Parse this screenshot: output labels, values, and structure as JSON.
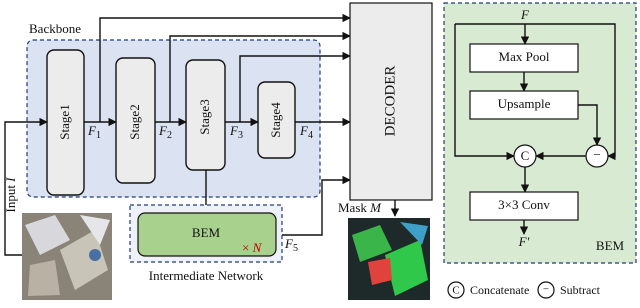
{
  "backbone": {
    "title": "Backbone",
    "stages": [
      "Stage1",
      "Stage2",
      "Stage3",
      "Stage4"
    ],
    "features": [
      {
        "base": "F",
        "sub": "1"
      },
      {
        "base": "F",
        "sub": "2"
      },
      {
        "base": "F",
        "sub": "3"
      },
      {
        "base": "F",
        "sub": "4"
      }
    ]
  },
  "input": {
    "text": "Input",
    "var": "I"
  },
  "intermediate": {
    "block": "BEM",
    "times": "×",
    "var": "N",
    "title": "Intermediate Network",
    "feature": {
      "base": "F",
      "sub": "5"
    }
  },
  "decoder": "DECODER",
  "mask": {
    "text": "Mask",
    "var": "M"
  },
  "bem_panel": {
    "input": "F",
    "max_pool": "Max Pool",
    "upsample": "Upsample",
    "concat": "C",
    "subtract": "−",
    "conv": "3×3 Conv",
    "output": "F′",
    "title": "BEM"
  },
  "legend": [
    {
      "symbol": "C",
      "label": "Concatenate"
    },
    {
      "symbol": "−",
      "label": "Subtract"
    }
  ]
}
